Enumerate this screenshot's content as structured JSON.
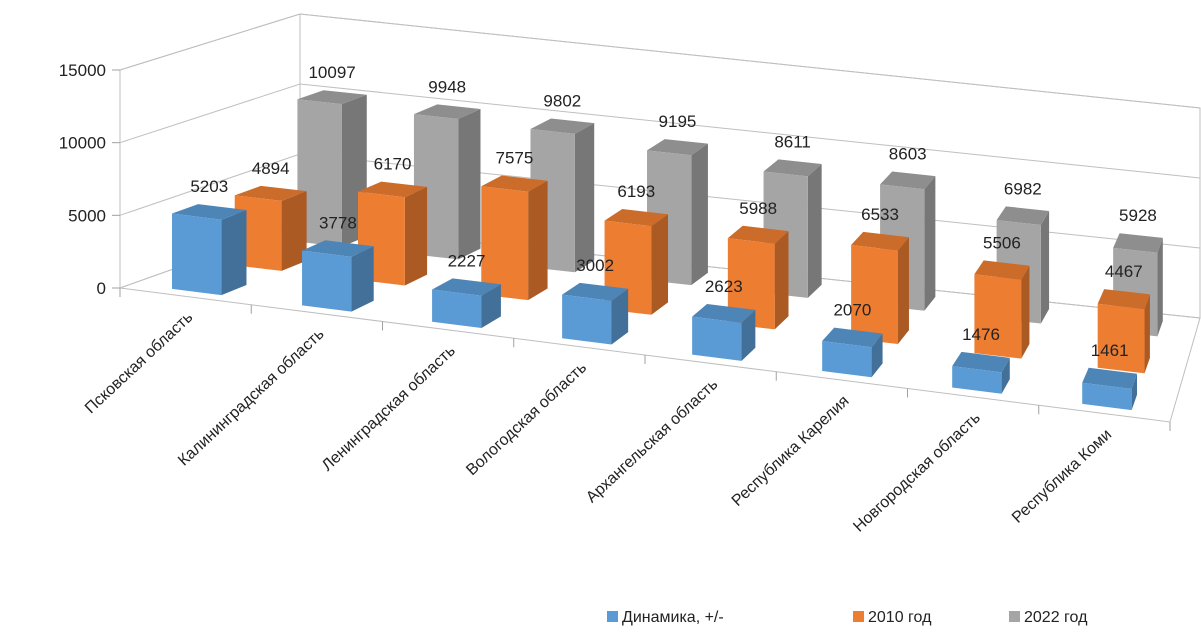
{
  "chart_data": {
    "type": "bar",
    "subtype": "3d-clustered-depth",
    "categories": [
      "Псковская область",
      "Калининградская область",
      "Ленинградская область",
      "Вологодская область",
      "Архангельская область",
      "Республика Карелия",
      "Новгородская область",
      "Республика Коми"
    ],
    "series": [
      {
        "name": "Динамика, +/-",
        "color": "#5b9bd5",
        "values": [
          5203,
          3778,
          2227,
          3002,
          2623,
          2070,
          1476,
          1461
        ]
      },
      {
        "name": "2010 год",
        "color": "#ed7d31",
        "values": [
          4894,
          6170,
          7575,
          6193,
          5988,
          6533,
          5506,
          4467
        ]
      },
      {
        "name": "2022 год",
        "color": "#a5a5a5",
        "values": [
          10097,
          9948,
          9802,
          9195,
          8611,
          8603,
          6982,
          5928
        ]
      }
    ],
    "title": "",
    "xlabel": "",
    "ylabel": "",
    "ylim": [
      0,
      15000
    ],
    "yticks": [
      0,
      5000,
      10000,
      15000
    ],
    "yticks_labels": [
      "0",
      "5000",
      "10000",
      "15000"
    ],
    "grid": true,
    "legend": "bottom-right",
    "data_labels": true
  }
}
